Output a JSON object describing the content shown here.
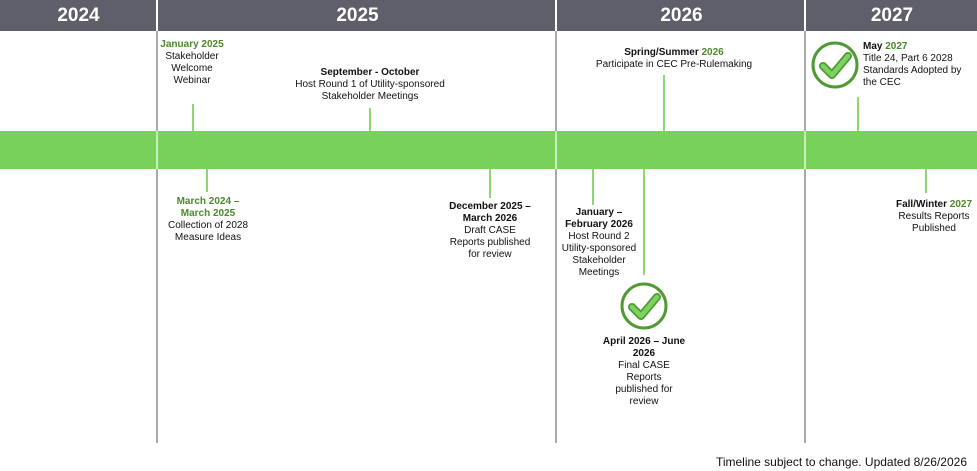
{
  "years": [
    "2024",
    "2025",
    "2026",
    "2027"
  ],
  "colors": {
    "header": "#5f5e6b",
    "bar": "#77d15a",
    "accent_text": "#4a8a2a",
    "check": "#4e9a33"
  },
  "milestones": [
    {
      "title_black": "",
      "title_green": "January 2025",
      "text": [
        "Stakeholder",
        "Welcome",
        "Webinar"
      ]
    },
    {
      "title_black": "September - October",
      "title_green": "",
      "text": [
        "Host Round 1 of Utility-sponsored",
        "Stakeholder Meetings"
      ]
    },
    {
      "title_black": "Spring/Summer ",
      "title_green": "2026",
      "text": [
        "Participate in CEC Pre-Rulemaking"
      ]
    },
    {
      "title_black": "May ",
      "title_green": "2027",
      "text": [
        "Title 24, Part 6 2028",
        "Standards Adopted by",
        "the CEC"
      ],
      "icon": "check-circle-icon"
    },
    {
      "title_black": "",
      "title_green": "March 2024 – March 2025",
      "text": [
        "Collection of 2028",
        "Measure Ideas"
      ]
    },
    {
      "title_black": "December 2025 – March 2026",
      "title_green": "",
      "text": [
        "Draft CASE",
        "Reports published",
        "for review"
      ]
    },
    {
      "title_black": "January – February 2026",
      "title_green": "",
      "text": [
        "Host Round 2",
        "Utility-sponsored",
        "Stakeholder",
        "Meetings"
      ]
    },
    {
      "title_black": "April 2026 – June 2026",
      "title_green": "",
      "text": [
        "Final CASE",
        "Reports",
        "published for",
        "review"
      ],
      "icon": "check-circle-icon"
    },
    {
      "title_black": "Fall/Winter ",
      "title_green": "2027",
      "text": [
        "Results Reports",
        "Published"
      ]
    }
  ],
  "footer": "Timeline subject to change. Updated 8/26/2026"
}
